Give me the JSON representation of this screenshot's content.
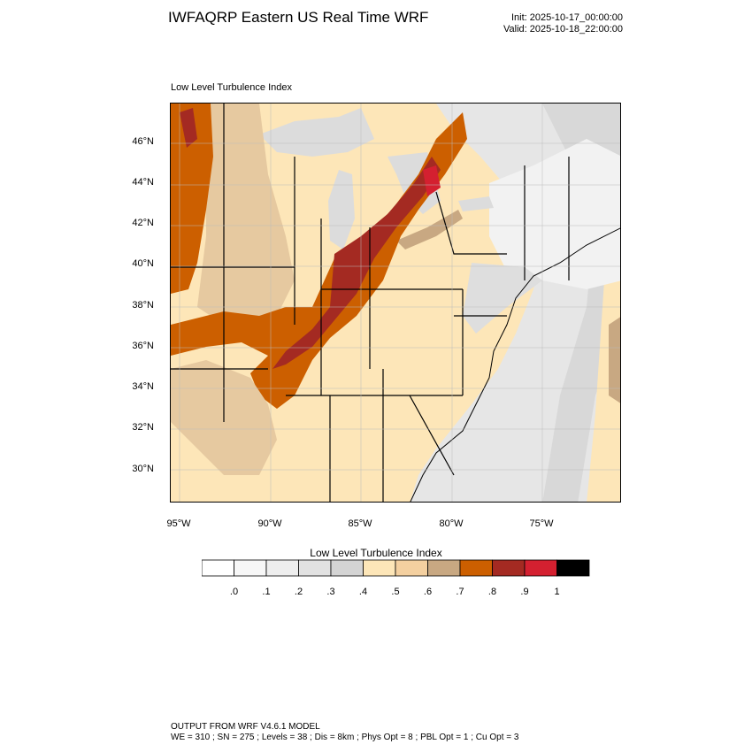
{
  "header": {
    "title": "IWFAQRP Eastern US Real Time WRF",
    "init": "Init: 2025-10-17_00:00:00",
    "valid": "Valid: 2025-10-18_22:00:00"
  },
  "map": {
    "field_label": "Low Level Turbulence Index",
    "lat_labels": [
      "46°N",
      "44°N",
      "42°N",
      "40°N",
      "38°N",
      "36°N",
      "34°N",
      "32°N",
      "30°N"
    ],
    "lon_labels": [
      "95°W",
      "90°W",
      "85°W",
      "80°W",
      "75°W"
    ]
  },
  "colorbar": {
    "title": "Low Level Turbulence Index",
    "labels": [
      ".0",
      ".1",
      ".2",
      ".3",
      ".4",
      ".5",
      ".6",
      ".7",
      ".8",
      ".9",
      "1"
    ],
    "colors": [
      "#ffffff",
      "#f7f7f7",
      "#eeeeee",
      "#e2e2e2",
      "#d4d4d4",
      "#fde6b8",
      "#f4d0a0",
      "#c8a882",
      "#cc5f00",
      "#a42a22",
      "#d42030",
      "#000000"
    ]
  },
  "footer": {
    "line1": "OUTPUT FROM WRF V4.6.1 MODEL",
    "line2": "WE = 310 ; SN = 275 ; Levels = 38 ; Dis = 8km ; Phys Opt = 8 ; PBL Opt = 1 ; Cu Opt = 3"
  }
}
